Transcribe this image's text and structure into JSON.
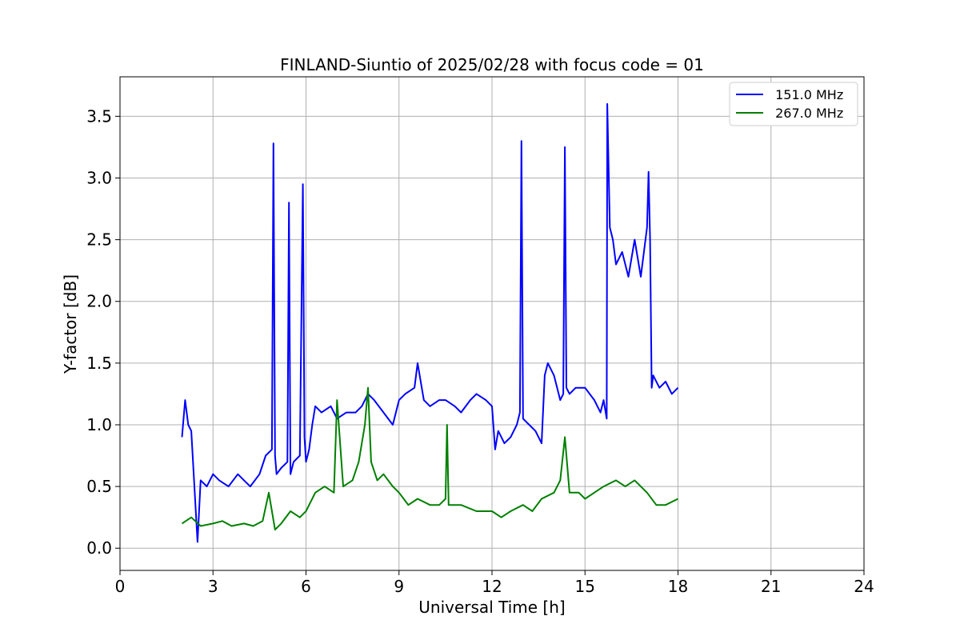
{
  "chart_data": {
    "type": "line",
    "title": "FINLAND-Siuntio of 2025/02/28 with focus code = 01",
    "xlabel": "Universal Time [h]",
    "ylabel": "Y-factor [dB]",
    "xlim": [
      0,
      24
    ],
    "ylim": [
      -0.18,
      3.82
    ],
    "xticks": [
      0,
      3,
      6,
      9,
      12,
      15,
      18,
      21,
      24
    ],
    "yticks": [
      0.0,
      0.5,
      1.0,
      1.5,
      2.0,
      2.5,
      3.0,
      3.5
    ],
    "xtick_labels": [
      "0",
      "3",
      "6",
      "9",
      "12",
      "15",
      "18",
      "21",
      "24"
    ],
    "ytick_labels": [
      "0.0",
      "0.5",
      "1.0",
      "1.5",
      "2.0",
      "2.5",
      "3.0",
      "3.5"
    ],
    "grid": true,
    "legend_position": "top-right",
    "series": [
      {
        "name": " 151.0 MHz",
        "color": "#0000ff",
        "x": [
          2.0,
          2.1,
          2.2,
          2.3,
          2.4,
          2.5,
          2.6,
          2.8,
          3.0,
          3.2,
          3.5,
          3.8,
          4.0,
          4.2,
          4.5,
          4.7,
          4.9,
          4.95,
          5.0,
          5.05,
          5.2,
          5.4,
          5.45,
          5.5,
          5.6,
          5.8,
          5.9,
          5.95,
          6.0,
          6.1,
          6.2,
          6.3,
          6.5,
          6.8,
          7.0,
          7.3,
          7.6,
          7.8,
          8.0,
          8.2,
          8.5,
          8.8,
          9.0,
          9.2,
          9.5,
          9.6,
          9.8,
          10.0,
          10.3,
          10.5,
          10.8,
          11.0,
          11.3,
          11.5,
          11.8,
          12.0,
          12.1,
          12.2,
          12.4,
          12.6,
          12.8,
          12.9,
          12.95,
          13.0,
          13.2,
          13.4,
          13.6,
          13.7,
          13.8,
          14.0,
          14.2,
          14.3,
          14.35,
          14.4,
          14.5,
          14.7,
          15.0,
          15.3,
          15.5,
          15.6,
          15.7,
          15.72,
          15.8,
          15.9,
          16.0,
          16.2,
          16.4,
          16.6,
          16.8,
          17.0,
          17.05,
          17.1,
          17.15,
          17.2,
          17.4,
          17.6,
          17.8,
          18.0
        ],
        "values": [
          0.9,
          1.2,
          1.0,
          0.95,
          0.5,
          0.05,
          0.55,
          0.5,
          0.6,
          0.55,
          0.5,
          0.6,
          0.55,
          0.5,
          0.6,
          0.75,
          0.8,
          3.28,
          0.75,
          0.6,
          0.65,
          0.7,
          2.8,
          0.6,
          0.7,
          0.75,
          2.95,
          0.9,
          0.7,
          0.8,
          1.0,
          1.15,
          1.1,
          1.15,
          1.05,
          1.1,
          1.1,
          1.15,
          1.25,
          1.2,
          1.1,
          1.0,
          1.2,
          1.25,
          1.3,
          1.5,
          1.2,
          1.15,
          1.2,
          1.2,
          1.15,
          1.1,
          1.2,
          1.25,
          1.2,
          1.15,
          0.8,
          0.95,
          0.85,
          0.9,
          1.0,
          1.1,
          3.3,
          1.05,
          1.0,
          0.95,
          0.85,
          1.4,
          1.5,
          1.4,
          1.2,
          1.25,
          3.25,
          1.3,
          1.25,
          1.3,
          1.3,
          1.2,
          1.1,
          1.2,
          1.05,
          3.6,
          2.6,
          2.5,
          2.3,
          2.4,
          2.2,
          2.5,
          2.2,
          2.6,
          3.05,
          2.5,
          1.3,
          1.4,
          1.3,
          1.35,
          1.25,
          1.3
        ]
      },
      {
        "name": " 267.0 MHz",
        "color": "#008000",
        "x": [
          2.0,
          2.3,
          2.6,
          3.0,
          3.3,
          3.6,
          4.0,
          4.3,
          4.6,
          4.8,
          5.0,
          5.2,
          5.5,
          5.8,
          6.0,
          6.3,
          6.6,
          6.9,
          7.0,
          7.2,
          7.5,
          7.7,
          7.9,
          8.0,
          8.1,
          8.3,
          8.5,
          8.8,
          9.0,
          9.3,
          9.6,
          10.0,
          10.3,
          10.5,
          10.55,
          10.6,
          11.0,
          11.5,
          12.0,
          12.3,
          12.6,
          13.0,
          13.3,
          13.6,
          14.0,
          14.2,
          14.35,
          14.5,
          14.8,
          15.0,
          15.3,
          15.6,
          16.0,
          16.3,
          16.6,
          17.0,
          17.3,
          17.6,
          18.0
        ],
        "values": [
          0.2,
          0.25,
          0.18,
          0.2,
          0.22,
          0.18,
          0.2,
          0.18,
          0.22,
          0.45,
          0.15,
          0.2,
          0.3,
          0.25,
          0.3,
          0.45,
          0.5,
          0.45,
          1.2,
          0.5,
          0.55,
          0.7,
          1.0,
          1.3,
          0.7,
          0.55,
          0.6,
          0.5,
          0.45,
          0.35,
          0.4,
          0.35,
          0.35,
          0.4,
          1.0,
          0.35,
          0.35,
          0.3,
          0.3,
          0.25,
          0.3,
          0.35,
          0.3,
          0.4,
          0.45,
          0.55,
          0.9,
          0.45,
          0.45,
          0.4,
          0.45,
          0.5,
          0.55,
          0.5,
          0.55,
          0.45,
          0.35,
          0.35,
          0.4
        ]
      }
    ]
  }
}
